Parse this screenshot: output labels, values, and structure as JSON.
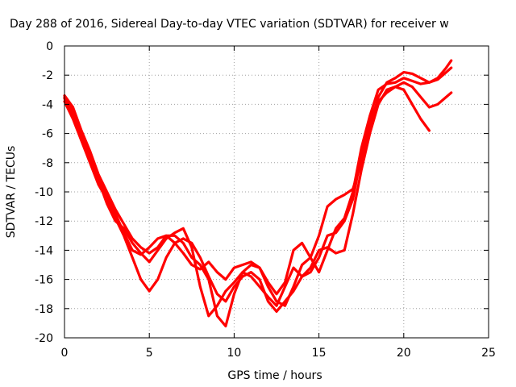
{
  "chart_data": {
    "type": "line",
    "title": "Day 288 of 2016, Sidereal Day-to-day VTEC variation (SDTVAR) for receiver w",
    "xlabel": "GPS time / hours",
    "ylabel": "SDTVAR / TECUs",
    "xlim": [
      0,
      25
    ],
    "ylim": [
      -20,
      0
    ],
    "xticks": [
      "0",
      "5",
      "10",
      "15",
      "20",
      "25"
    ],
    "yticks": [
      "0",
      "-2",
      "-4",
      "-6",
      "-8",
      "-10",
      "-12",
      "-14",
      "-16",
      "-18",
      "-20"
    ],
    "grid": true,
    "marker": "+",
    "color": "#ff0000",
    "series": [
      {
        "x": [
          0.0,
          0.5,
          1.0,
          1.5,
          2.0,
          2.5,
          3.0,
          3.5,
          4.0,
          4.5,
          5.0,
          5.5,
          6.0,
          6.5,
          7.0,
          7.5,
          8.0,
          8.5,
          9.0,
          9.5,
          10.0,
          10.5,
          11.0,
          11.5,
          12.0,
          12.5,
          13.0,
          13.5,
          14.0,
          14.5,
          15.0,
          15.5,
          16.0,
          16.5,
          17.0,
          17.5,
          18.0,
          18.5,
          19.0,
          19.5,
          20.0,
          20.5,
          21.0,
          21.5,
          22.0,
          22.5,
          22.8
        ],
        "y": [
          -3.5,
          -4.5,
          -6.0,
          -7.5,
          -9.0,
          -10.3,
          -11.5,
          -12.8,
          -14.0,
          -14.3,
          -13.8,
          -13.2,
          -13.0,
          -13.5,
          -14.2,
          -15.0,
          -15.3,
          -14.8,
          -15.5,
          -16.0,
          -15.2,
          -15.0,
          -14.8,
          -15.2,
          -16.5,
          -17.5,
          -17.8,
          -16.5,
          -15.0,
          -14.5,
          -13.0,
          -11.0,
          -10.5,
          -10.2,
          -9.8,
          -8.0,
          -5.5,
          -3.5,
          -2.5,
          -2.2,
          -1.8,
          -1.9,
          -2.2,
          -2.5,
          -2.3,
          -1.8,
          -1.5
        ]
      },
      {
        "x": [
          0.0,
          0.5,
          1.0,
          1.5,
          2.0,
          2.5,
          3.0,
          3.5,
          4.0,
          4.5,
          5.0,
          5.5,
          6.0,
          6.5,
          7.0,
          7.5,
          8.0,
          8.5,
          9.0,
          9.5,
          10.0,
          10.5,
          11.0,
          11.5,
          12.0,
          12.5,
          13.0,
          13.5,
          14.0,
          14.5,
          15.0,
          15.5,
          16.0,
          16.5,
          17.0,
          17.5,
          18.0,
          18.5,
          19.0,
          19.5,
          20.0,
          20.5,
          21.0,
          21.5
        ],
        "y": [
          -3.8,
          -5.0,
          -6.5,
          -8.0,
          -9.5,
          -10.5,
          -11.8,
          -13.0,
          -14.5,
          -16.0,
          -16.8,
          -16.0,
          -14.5,
          -13.5,
          -13.2,
          -13.5,
          -14.5,
          -15.8,
          -17.0,
          -17.5,
          -16.5,
          -15.8,
          -15.5,
          -16.0,
          -17.5,
          -18.2,
          -17.5,
          -16.8,
          -15.8,
          -15.2,
          -14.0,
          -13.8,
          -14.2,
          -14.0,
          -11.5,
          -8.5,
          -6.0,
          -4.0,
          -3.0,
          -2.8,
          -3.0,
          -4.0,
          -5.0,
          -5.8
        ]
      },
      {
        "x": [
          0.0,
          0.5,
          1.0,
          1.5,
          2.0,
          2.5,
          3.0,
          3.5,
          4.0,
          4.5,
          5.0,
          5.5,
          6.0,
          6.5,
          7.0,
          7.5,
          8.0,
          8.5,
          9.0,
          9.5,
          10.0,
          10.5,
          11.0,
          11.5,
          12.0,
          12.5,
          13.0,
          13.5,
          14.0,
          14.5,
          15.0,
          15.5,
          16.0,
          16.5,
          17.0,
          17.5,
          18.0,
          18.5,
          19.0,
          19.5,
          20.0,
          20.5,
          21.0,
          21.5,
          22.0,
          22.5,
          22.8
        ],
        "y": [
          -3.6,
          -4.8,
          -6.2,
          -7.8,
          -9.2,
          -10.8,
          -12.0,
          -12.5,
          -13.5,
          -14.2,
          -14.8,
          -14.0,
          -13.2,
          -12.8,
          -12.5,
          -13.8,
          -16.5,
          -18.5,
          -17.8,
          -16.8,
          -16.2,
          -15.5,
          -15.8,
          -16.5,
          -17.2,
          -17.8,
          -16.5,
          -15.2,
          -15.8,
          -15.5,
          -14.5,
          -13.0,
          -12.8,
          -12.0,
          -10.5,
          -7.5,
          -5.0,
          -3.8,
          -3.2,
          -2.8,
          -2.5,
          -2.8,
          -3.5,
          -4.2,
          -4.0,
          -3.5,
          -3.2
        ]
      },
      {
        "x": [
          0.0,
          0.5,
          1.0,
          1.5,
          2.0,
          2.5,
          3.0,
          3.5,
          4.0,
          4.5,
          5.0,
          5.5,
          6.0,
          6.5,
          7.0,
          7.5,
          8.0,
          8.5,
          9.0,
          9.5,
          10.0,
          10.5,
          11.0,
          11.5,
          12.0,
          12.5,
          13.0,
          13.5,
          14.0,
          14.5,
          15.0,
          15.5,
          16.0,
          16.5,
          17.0,
          17.5,
          18.0,
          18.5,
          19.0,
          19.5,
          20.0,
          20.5,
          21.0,
          21.5,
          22.0,
          22.5,
          22.8
        ],
        "y": [
          -3.4,
          -4.2,
          -5.8,
          -7.2,
          -8.8,
          -10.0,
          -11.2,
          -12.2,
          -13.2,
          -13.8,
          -14.2,
          -13.8,
          -13.0,
          -13.0,
          -13.5,
          -14.5,
          -15.0,
          -16.0,
          -18.5,
          -19.2,
          -17.0,
          -15.5,
          -15.0,
          -15.2,
          -16.2,
          -17.0,
          -16.2,
          -14.0,
          -13.5,
          -14.5,
          -15.5,
          -14.0,
          -12.5,
          -11.8,
          -10.0,
          -7.0,
          -4.8,
          -3.0,
          -2.6,
          -2.5,
          -2.2,
          -2.4,
          -2.6,
          -2.5,
          -2.2,
          -1.5,
          -1.0
        ]
      }
    ]
  }
}
